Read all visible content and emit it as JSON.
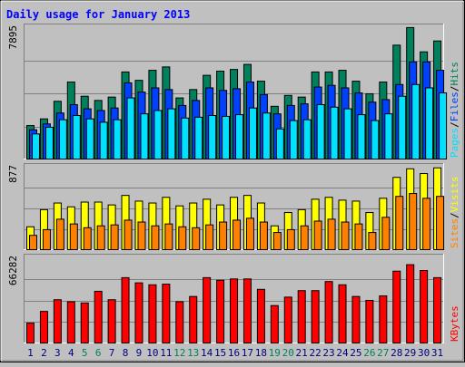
{
  "colors": {
    "background": "#c0c0c0",
    "title": "#0000ff",
    "hits": "#00805c",
    "files": "#0040ff",
    "pages": "#00e0ff",
    "visits": "#ffff00",
    "sites": "#ff8000",
    "kbytes": "#ff0000",
    "weekend_label": "#00805c",
    "weekday_label": "#000080"
  },
  "chart_data": {
    "type": "bar",
    "title": "Daily usage for January 2013",
    "categories": [
      "1",
      "2",
      "3",
      "4",
      "5",
      "6",
      "7",
      "8",
      "9",
      "10",
      "11",
      "12",
      "13",
      "14",
      "15",
      "16",
      "17",
      "18",
      "19",
      "20",
      "21",
      "22",
      "23",
      "24",
      "25",
      "26",
      "27",
      "28",
      "29",
      "30",
      "31"
    ],
    "weekend_days": [
      "5",
      "6",
      "12",
      "13",
      "19",
      "20",
      "26",
      "27"
    ],
    "panels": [
      {
        "id": "hits-files-pages",
        "axis_max_label": "7895",
        "ylim": [
          0,
          7895
        ],
        "legend": [
          "Pages",
          "/",
          "Files",
          "/",
          "Hits"
        ],
        "series": [
          {
            "name": "Hits",
            "values": [
              2050,
              2450,
              3500,
              4650,
              3800,
              3550,
              3750,
              5250,
              4750,
              5350,
              5550,
              3700,
              4200,
              5050,
              5300,
              5400,
              5700,
              4700,
              3200,
              3850,
              3750,
              5250,
              5250,
              5350,
              4700,
              3950,
              4650,
              6850,
              7900,
              6450,
              7100
            ]
          },
          {
            "name": "Files",
            "values": [
              1800,
              2150,
              2800,
              3300,
              3050,
              2950,
              3100,
              4600,
              4050,
              4300,
              4200,
              3250,
              3550,
              4300,
              4150,
              4250,
              4650,
              3900,
              2750,
              3250,
              3350,
              4350,
              4450,
              4300,
              4000,
              3450,
              3600,
              4500,
              5850,
              5850,
              5350
            ]
          },
          {
            "name": "Pages",
            "values": [
              1550,
              1950,
              2400,
              2650,
              2450,
              2250,
              2400,
              3700,
              2750,
              2950,
              3050,
              2500,
              2550,
              2650,
              2600,
              2700,
              3100,
              2800,
              1850,
              2350,
              2400,
              3300,
              3150,
              3050,
              2700,
              2350,
              2750,
              3800,
              4500,
              4300,
              4000
            ]
          }
        ]
      },
      {
        "id": "visits-sites",
        "axis_max_label": "877",
        "ylim": [
          0,
          877
        ],
        "legend": [
          "Sites",
          "/",
          "Visits"
        ],
        "series": [
          {
            "name": "Visits",
            "values": [
              250,
              430,
              500,
              460,
              510,
              510,
              480,
              580,
              520,
              500,
              560,
              470,
              500,
              540,
              480,
              560,
              580,
              500,
              260,
              400,
              430,
              540,
              560,
              530,
              520,
              400,
              550,
              770,
              860,
              810,
              870
            ]
          },
          {
            "name": "Sites",
            "values": [
              160,
              220,
              330,
              280,
              240,
              260,
              270,
              320,
              300,
              260,
              280,
              250,
              240,
              270,
              300,
              320,
              340,
              300,
              190,
              220,
              260,
              310,
              330,
              300,
              280,
              190,
              350,
              570,
              600,
              550,
              570
            ]
          }
        ]
      },
      {
        "id": "kbytes",
        "axis_max_label": "66282",
        "ylim": [
          0,
          66282
        ],
        "legend": [
          "KBytes"
        ],
        "series": [
          {
            "name": "KBytes",
            "values": [
              16000,
              25000,
              34000,
              32500,
              31500,
              40500,
              34000,
              51000,
              47000,
              45500,
              46000,
              32500,
              36500,
              51000,
              49000,
              50000,
              50000,
              42000,
              29500,
              36000,
              41000,
              41000,
              48000,
              45500,
              36500,
              33500,
              37000,
              56000,
              61000,
              56500,
              51000
            ]
          }
        ]
      }
    ]
  }
}
